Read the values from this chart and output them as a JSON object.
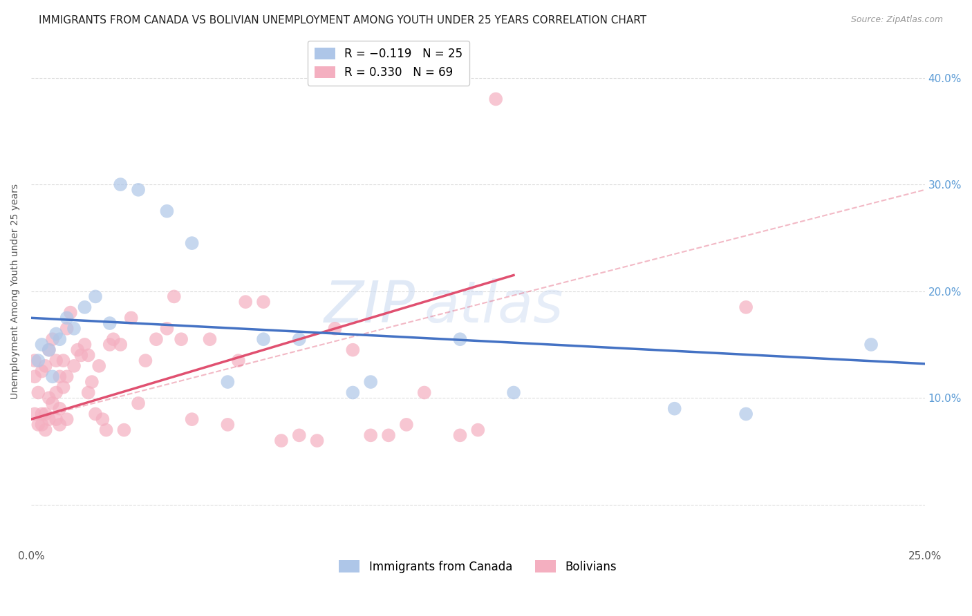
{
  "title": "IMMIGRANTS FROM CANADA VS BOLIVIAN UNEMPLOYMENT AMONG YOUTH UNDER 25 YEARS CORRELATION CHART",
  "source": "Source: ZipAtlas.com",
  "ylabel": "Unemployment Among Youth under 25 years",
  "xlim": [
    0.0,
    0.25
  ],
  "ylim": [
    -0.04,
    0.44
  ],
  "right_yticks": [
    0.1,
    0.2,
    0.3,
    0.4
  ],
  "right_ytick_labels": [
    "10.0%",
    "20.0%",
    "30.0%",
    "40.0%"
  ],
  "xtick_positions": [
    0.0,
    0.05,
    0.1,
    0.15,
    0.2,
    0.25
  ],
  "xtick_labels": [
    "0.0%",
    "",
    "",
    "",
    "",
    "25.0%"
  ],
  "blue_scatter_x": [
    0.002,
    0.003,
    0.005,
    0.006,
    0.007,
    0.008,
    0.01,
    0.012,
    0.015,
    0.018,
    0.022,
    0.025,
    0.03,
    0.038,
    0.045,
    0.055,
    0.065,
    0.075,
    0.09,
    0.095,
    0.12,
    0.135,
    0.18,
    0.2,
    0.235
  ],
  "blue_scatter_y": [
    0.135,
    0.15,
    0.145,
    0.12,
    0.16,
    0.155,
    0.175,
    0.165,
    0.185,
    0.195,
    0.17,
    0.3,
    0.295,
    0.275,
    0.245,
    0.115,
    0.155,
    0.155,
    0.105,
    0.115,
    0.155,
    0.105,
    0.09,
    0.085,
    0.15
  ],
  "pink_scatter_x": [
    0.001,
    0.001,
    0.001,
    0.002,
    0.002,
    0.003,
    0.003,
    0.003,
    0.004,
    0.004,
    0.004,
    0.005,
    0.005,
    0.005,
    0.006,
    0.006,
    0.007,
    0.007,
    0.007,
    0.008,
    0.008,
    0.008,
    0.009,
    0.009,
    0.01,
    0.01,
    0.01,
    0.011,
    0.012,
    0.013,
    0.014,
    0.015,
    0.016,
    0.016,
    0.017,
    0.018,
    0.019,
    0.02,
    0.021,
    0.022,
    0.023,
    0.025,
    0.026,
    0.028,
    0.03,
    0.032,
    0.035,
    0.038,
    0.04,
    0.042,
    0.045,
    0.05,
    0.055,
    0.058,
    0.06,
    0.065,
    0.07,
    0.075,
    0.08,
    0.085,
    0.09,
    0.095,
    0.1,
    0.105,
    0.11,
    0.12,
    0.125,
    0.13,
    0.2
  ],
  "pink_scatter_y": [
    0.135,
    0.12,
    0.085,
    0.105,
    0.075,
    0.125,
    0.085,
    0.075,
    0.13,
    0.085,
    0.07,
    0.145,
    0.1,
    0.08,
    0.155,
    0.095,
    0.135,
    0.105,
    0.08,
    0.12,
    0.09,
    0.075,
    0.135,
    0.11,
    0.165,
    0.12,
    0.08,
    0.18,
    0.13,
    0.145,
    0.14,
    0.15,
    0.14,
    0.105,
    0.115,
    0.085,
    0.13,
    0.08,
    0.07,
    0.15,
    0.155,
    0.15,
    0.07,
    0.175,
    0.095,
    0.135,
    0.155,
    0.165,
    0.195,
    0.155,
    0.08,
    0.155,
    0.075,
    0.135,
    0.19,
    0.19,
    0.06,
    0.065,
    0.06,
    0.165,
    0.145,
    0.065,
    0.065,
    0.075,
    0.105,
    0.065,
    0.07,
    0.38,
    0.185
  ],
  "blue_line_x": [
    0.0,
    0.25
  ],
  "blue_line_y": [
    0.175,
    0.132
  ],
  "pink_solid_line_x": [
    0.0,
    0.135
  ],
  "pink_solid_line_y": [
    0.08,
    0.215
  ],
  "pink_dash_line_x": [
    0.0,
    0.25
  ],
  "pink_dash_line_y": [
    0.08,
    0.295
  ],
  "blue_color": "#4472c4",
  "pink_color": "#e05070",
  "blue_scatter_color": "#aec6e8",
  "pink_scatter_color": "#f4afc0",
  "background_color": "#ffffff",
  "grid_color": "#cccccc",
  "title_fontsize": 11,
  "axis_label_fontsize": 10,
  "tick_fontsize": 11,
  "watermark": "ZIPatlas",
  "legend_top": [
    {
      "label": "R = −0.119   N = 25",
      "color": "#aec6e8"
    },
    {
      "label": "R = 0.330   N = 69",
      "color": "#f4afc0"
    }
  ],
  "legend_bottom": [
    {
      "label": "Immigrants from Canada",
      "color": "#aec6e8"
    },
    {
      "label": "Bolivians",
      "color": "#f4afc0"
    }
  ]
}
